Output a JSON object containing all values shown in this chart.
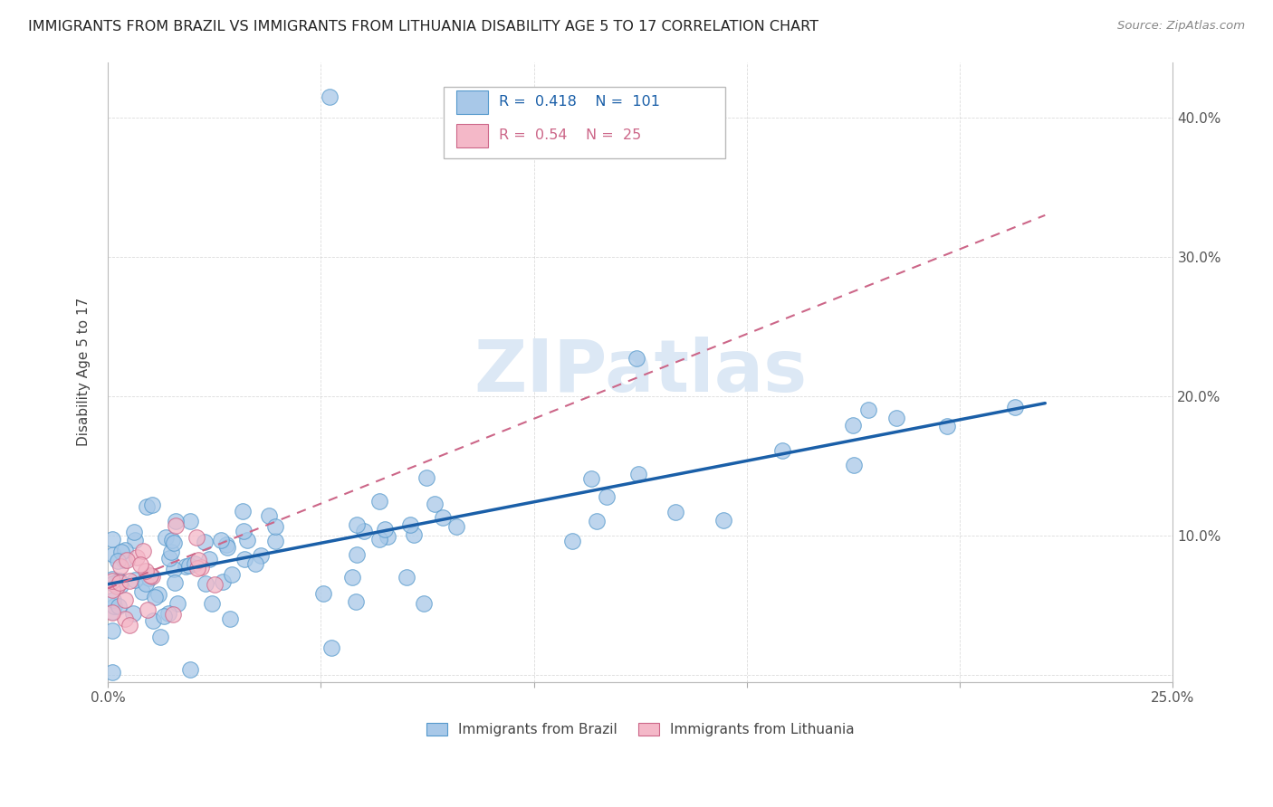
{
  "title": "IMMIGRANTS FROM BRAZIL VS IMMIGRANTS FROM LITHUANIA DISABILITY AGE 5 TO 17 CORRELATION CHART",
  "source": "Source: ZipAtlas.com",
  "ylabel": "Disability Age 5 to 17",
  "legend_brazil_label": "Immigrants from Brazil",
  "legend_lithuania_label": "Immigrants from Lithuania",
  "r_brazil": 0.418,
  "n_brazil": 101,
  "r_lithuania": 0.54,
  "n_lithuania": 25,
  "xlim": [
    0.0,
    0.25
  ],
  "ylim": [
    -0.005,
    0.44
  ],
  "xticks": [
    0.0,
    0.05,
    0.1,
    0.15,
    0.2,
    0.25
  ],
  "yticks": [
    0.0,
    0.1,
    0.2,
    0.3,
    0.4
  ],
  "color_brazil": "#a8c8e8",
  "color_brazil_edge": "#5599cc",
  "color_lithuania": "#f4b8c8",
  "color_lithuania_edge": "#cc6688",
  "trendline_brazil_color": "#1a5fa8",
  "trendline_lithuania_color": "#cc6688",
  "watermark_color": "#dce8f5",
  "background_color": "#ffffff",
  "grid_color": "#cccccc",
  "brazil_trendline_x0": 0.0,
  "brazil_trendline_y0": 0.065,
  "brazil_trendline_x1": 0.22,
  "brazil_trendline_y1": 0.195,
  "lith_trendline_x0": 0.0,
  "lith_trendline_y0": 0.062,
  "lith_trendline_x1": 0.22,
  "lith_trendline_y1": 0.33
}
